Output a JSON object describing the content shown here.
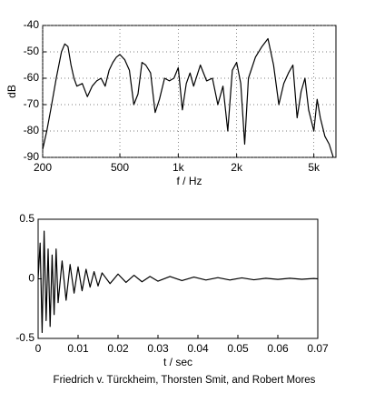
{
  "chart_data": [
    {
      "type": "line",
      "xscale": "log",
      "grid": true,
      "color": "#000000",
      "xlabel": "f / Hz",
      "ylabel": "dB",
      "xlim": [
        200,
        6500
      ],
      "ylim": [
        -90,
        -40
      ],
      "xticks": [
        200,
        500,
        {
          "value": 1000,
          "label": "1k"
        },
        {
          "value": 2000,
          "label": "2k"
        },
        {
          "value": 5000,
          "label": "5k"
        }
      ],
      "yticks": [
        -90,
        -80,
        -70,
        -60,
        -50,
        -40
      ],
      "x": [
        200,
        210,
        220,
        235,
        250,
        260,
        270,
        280,
        290,
        300,
        320,
        340,
        360,
        380,
        400,
        420,
        440,
        460,
        480,
        500,
        530,
        560,
        590,
        620,
        650,
        680,
        720,
        760,
        800,
        850,
        900,
        950,
        1000,
        1050,
        1100,
        1150,
        1200,
        1300,
        1400,
        1500,
        1600,
        1700,
        1800,
        1900,
        2000,
        2100,
        2200,
        2300,
        2500,
        2700,
        2900,
        3100,
        3300,
        3500,
        3700,
        3900,
        4100,
        4300,
        4500,
        4700,
        5000,
        5200,
        5400,
        5700,
        6000,
        6300
      ],
      "values": [
        -87,
        -80,
        -72,
        -60,
        -50,
        -47,
        -48,
        -55,
        -60,
        -63,
        -62,
        -67,
        -63,
        -61,
        -60,
        -63,
        -57,
        -54,
        -52,
        -51,
        -53,
        -57,
        -70,
        -66,
        -54,
        -55,
        -58,
        -73,
        -68,
        -60,
        -61,
        -60,
        -56,
        -72,
        -62,
        -58,
        -63,
        -55,
        -61,
        -60,
        -70,
        -63,
        -80,
        -57,
        -54,
        -62,
        -85,
        -60,
        -52,
        -48,
        -45,
        -55,
        -70,
        -62,
        -58,
        -55,
        -75,
        -65,
        -60,
        -72,
        -80,
        -68,
        -75,
        -82,
        -85,
        -90
      ]
    },
    {
      "type": "line",
      "xscale": "linear",
      "grid": false,
      "color": "#000000",
      "xlabel": "t / sec",
      "xlim": [
        0,
        0.07
      ],
      "ylim": [
        -0.5,
        0.5
      ],
      "xticks": [
        0,
        0.01,
        0.02,
        0.03,
        0.04,
        0.05,
        0.06,
        0.07
      ],
      "yticks": [
        -0.5,
        0,
        0.5
      ],
      "x": [
        0,
        0.0005,
        0.001,
        0.0015,
        0.002,
        0.0025,
        0.003,
        0.0035,
        0.004,
        0.0045,
        0.005,
        0.006,
        0.007,
        0.008,
        0.009,
        0.01,
        0.011,
        0.012,
        0.013,
        0.014,
        0.015,
        0.016,
        0.018,
        0.02,
        0.022,
        0.024,
        0.026,
        0.028,
        0.03,
        0.033,
        0.036,
        0.039,
        0.042,
        0.045,
        0.048,
        0.051,
        0.054,
        0.057,
        0.06,
        0.063,
        0.066,
        0.069,
        0.07
      ],
      "values": [
        0,
        0.3,
        -0.45,
        0.4,
        -0.35,
        0.25,
        -0.4,
        0.2,
        -0.3,
        0.25,
        -0.2,
        0.15,
        -0.18,
        0.12,
        -0.12,
        0.1,
        -0.1,
        0.08,
        -0.07,
        0.06,
        -0.06,
        0.05,
        -0.04,
        0.04,
        -0.03,
        0.03,
        -0.025,
        0.02,
        -0.02,
        0.02,
        -0.015,
        0.015,
        -0.01,
        0.01,
        -0.01,
        0.008,
        -0.008,
        0.005,
        -0.005,
        0.005,
        -0.004,
        0.003,
        0
      ]
    }
  ],
  "caption": "Friedrich v. Türckheim, Thorsten Smit, and Robert Mores"
}
